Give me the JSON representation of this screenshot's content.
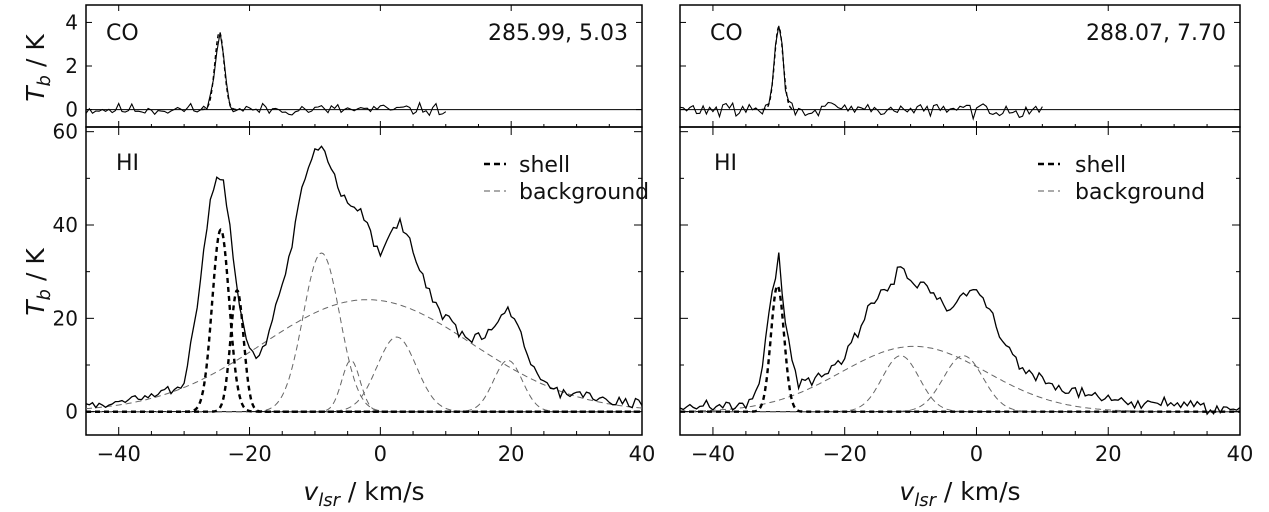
{
  "chart_data": [
    {
      "type": "line",
      "panel": "left",
      "coordinates": "285.99, 5.03",
      "x_label": "v_lsr / km/s",
      "x_ticks": [
        -40,
        -20,
        0,
        20,
        40
      ],
      "xlim": [
        -45,
        40
      ],
      "co": {
        "label": "CO",
        "y_label": "T_b / K",
        "ylim": [
          -0.8,
          4.8
        ],
        "y_ticks": [
          0,
          2,
          4
        ],
        "noise_sd": 0.14,
        "observed_until": 10,
        "peaks": [
          {
            "center": -24.6,
            "amp": 3.55,
            "sigma": 0.7
          }
        ]
      },
      "hi": {
        "label": "HI",
        "y_label": "T_b / K",
        "ylim": [
          -5,
          61
        ],
        "y_ticks": [
          0,
          20,
          40,
          60
        ],
        "legend": [
          "shell",
          "background"
        ],
        "noise_sd": 0.9,
        "shell": [
          {
            "center": -24.4,
            "amp": 39,
            "sigma": 1.3
          },
          {
            "center": -21.9,
            "amp": 26,
            "sigma": 1.0
          }
        ],
        "background": [
          {
            "center": -2.0,
            "amp": 24,
            "sigma": 16
          },
          {
            "center": -9.0,
            "amp": 34,
            "sigma": 2.8
          },
          {
            "center": 2.5,
            "amp": 16,
            "sigma": 3.0
          },
          {
            "center": -4.5,
            "amp": 11,
            "sigma": 1.4
          },
          {
            "center": 19.5,
            "amp": 11,
            "sigma": 2.2
          }
        ],
        "observed": {
          "x": [
            -45,
            -40,
            -35,
            -30,
            -28,
            -26,
            -25,
            -24,
            -23,
            -22,
            -21,
            -20,
            -19,
            -17,
            -14,
            -12,
            -10,
            -9,
            -8,
            -7,
            -6,
            -4,
            -2,
            0,
            2,
            3,
            4,
            6,
            8,
            10,
            12,
            14,
            16,
            18,
            19.5,
            21,
            23,
            25,
            28,
            32,
            36,
            40
          ],
          "y": [
            1,
            2,
            3,
            6,
            22,
            45,
            51,
            50,
            40,
            27,
            19,
            14,
            12,
            17,
            32,
            48,
            56,
            57,
            53,
            50,
            47,
            44,
            40,
            33,
            40,
            40,
            38,
            30,
            24,
            20,
            17,
            15,
            16,
            19,
            22,
            19,
            10,
            6,
            4,
            3,
            2,
            2
          ]
        }
      }
    },
    {
      "type": "line",
      "panel": "right",
      "coordinates": "288.07, 7.70",
      "x_label": "v_lsr / km/s",
      "x_ticks": [
        -40,
        -20,
        0,
        20,
        40
      ],
      "xlim": [
        -45,
        40
      ],
      "co": {
        "label": "CO",
        "ylim": [
          -0.8,
          4.8
        ],
        "noise_sd": 0.16,
        "observed_until": 10,
        "peaks": [
          {
            "center": -30.0,
            "amp": 3.8,
            "sigma": 0.65
          }
        ]
      },
      "hi": {
        "label": "HI",
        "ylim": [
          -5,
          61
        ],
        "legend": [
          "shell",
          "background"
        ],
        "noise_sd": 0.9,
        "shell": [
          {
            "center": -30.2,
            "amp": 27,
            "sigma": 1.0
          }
        ],
        "background": [
          {
            "center": -9.5,
            "amp": 14,
            "sigma": 11
          },
          {
            "center": -11.5,
            "amp": 12,
            "sigma": 2.8
          },
          {
            "center": -2.0,
            "amp": 12,
            "sigma": 3.0
          }
        ],
        "observed": {
          "x": [
            -45,
            -40,
            -35,
            -33,
            -31,
            -30,
            -29,
            -28,
            -27,
            -25,
            -22,
            -20,
            -18,
            -16,
            -14,
            -12.5,
            -12,
            -10,
            -8,
            -6,
            -4,
            -2,
            0,
            2,
            4,
            6,
            8,
            10,
            12,
            15,
            20,
            25,
            30,
            35,
            40
          ],
          "y": [
            1,
            1,
            2,
            5,
            25,
            33,
            20,
            10,
            6,
            7,
            9,
            12,
            17,
            23,
            26,
            28,
            31,
            28,
            27,
            25,
            22,
            25,
            25,
            22,
            15,
            11,
            9,
            7,
            5,
            4,
            3,
            2,
            2,
            1,
            1
          ]
        }
      }
    }
  ]
}
